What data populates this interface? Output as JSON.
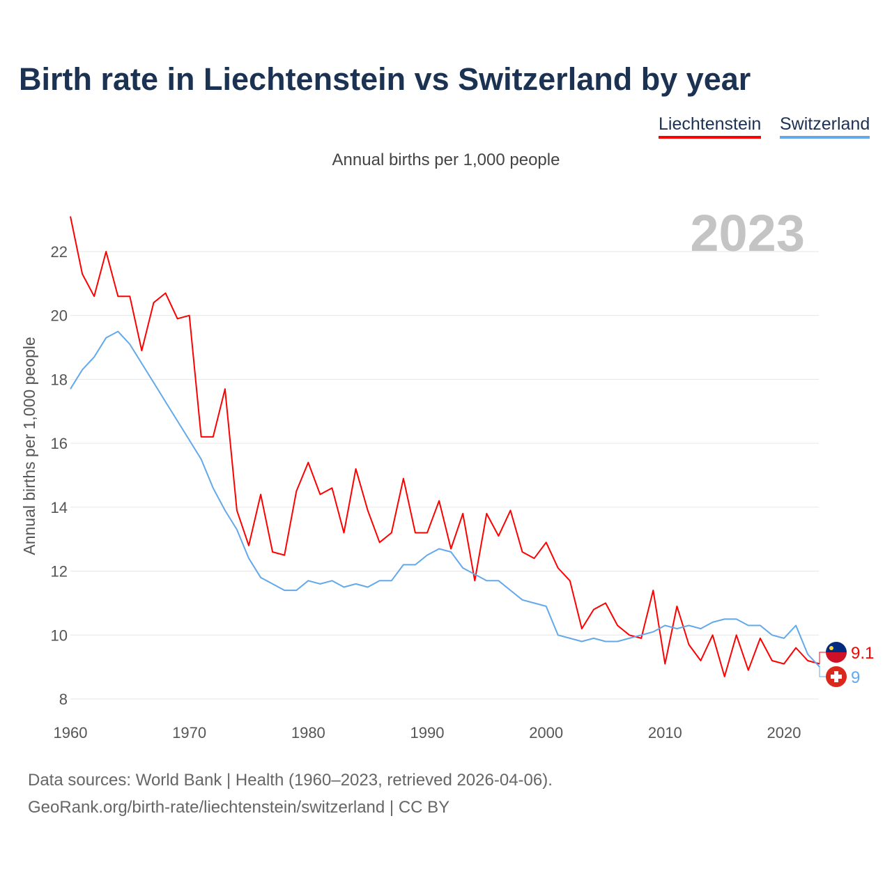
{
  "chart_data": {
    "type": "line",
    "title": "Birth rate in Liechtenstein vs Switzerland by year",
    "subtitle": "Annual births per 1,000 people",
    "ylabel": "Annual births per 1,000 people",
    "xlabel": "",
    "year_label": "2023",
    "xlim": [
      1960,
      2023
    ],
    "ylim": [
      8,
      23.1
    ],
    "grid": true,
    "legend_position": "top-right",
    "x_ticks": [
      "1960",
      "1970",
      "1980",
      "1990",
      "2000",
      "2010",
      "2020"
    ],
    "y_ticks": [
      "8",
      "10",
      "12",
      "14",
      "16",
      "18",
      "20",
      "22"
    ],
    "x": [
      1960,
      1961,
      1962,
      1963,
      1964,
      1965,
      1966,
      1967,
      1968,
      1969,
      1970,
      1971,
      1972,
      1973,
      1974,
      1975,
      1976,
      1977,
      1978,
      1979,
      1980,
      1981,
      1982,
      1983,
      1984,
      1985,
      1986,
      1987,
      1988,
      1989,
      1990,
      1991,
      1992,
      1993,
      1994,
      1995,
      1996,
      1997,
      1998,
      1999,
      2000,
      2001,
      2002,
      2003,
      2004,
      2005,
      2006,
      2007,
      2008,
      2009,
      2010,
      2011,
      2012,
      2013,
      2014,
      2015,
      2016,
      2017,
      2018,
      2019,
      2020,
      2021,
      2022,
      2023
    ],
    "series": [
      {
        "name": "Liechtenstein",
        "color": "#ff0000",
        "end_label": "9.1",
        "values": [
          23.1,
          21.3,
          20.6,
          22.0,
          20.6,
          20.6,
          18.9,
          20.4,
          20.7,
          19.9,
          20.0,
          16.2,
          16.2,
          17.7,
          13.9,
          12.8,
          14.4,
          12.6,
          12.5,
          14.5,
          15.4,
          14.4,
          14.6,
          13.2,
          15.2,
          13.9,
          12.9,
          13.2,
          14.9,
          13.2,
          13.2,
          14.2,
          12.7,
          13.8,
          11.7,
          13.8,
          13.1,
          13.9,
          12.6,
          12.4,
          12.9,
          12.1,
          11.7,
          10.2,
          10.8,
          11.0,
          10.3,
          10.0,
          9.9,
          11.4,
          9.1,
          10.9,
          9.7,
          9.2,
          10.0,
          8.7,
          10.0,
          8.9,
          9.9,
          9.2,
          9.1,
          9.6,
          9.2,
          9.1
        ]
      },
      {
        "name": "Switzerland",
        "color": "#62a8ea",
        "end_label": "9",
        "values": [
          17.7,
          18.3,
          18.7,
          19.3,
          19.5,
          19.1,
          18.5,
          17.9,
          17.3,
          16.7,
          16.1,
          15.5,
          14.6,
          13.9,
          13.3,
          12.4,
          11.8,
          11.6,
          11.4,
          11.4,
          11.7,
          11.6,
          11.7,
          11.5,
          11.6,
          11.5,
          11.7,
          11.7,
          12.2,
          12.2,
          12.5,
          12.7,
          12.6,
          12.1,
          11.9,
          11.7,
          11.7,
          11.4,
          11.1,
          11.0,
          10.9,
          10.0,
          9.9,
          9.8,
          9.9,
          9.8,
          9.8,
          9.9,
          10.0,
          10.1,
          10.3,
          10.2,
          10.3,
          10.2,
          10.4,
          10.5,
          10.5,
          10.3,
          10.3,
          10.0,
          9.9,
          10.3,
          9.4,
          9.0
        ]
      }
    ]
  },
  "footer": {
    "line1": "Data sources: World Bank | Health (1960–2023, retrieved 2026-04-06).",
    "line2": "GeoRank.org/birth-rate/liechtenstein/switzerland | CC BY"
  }
}
